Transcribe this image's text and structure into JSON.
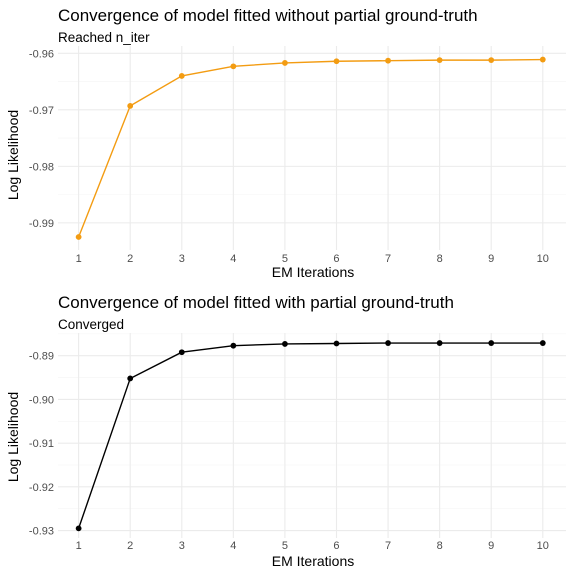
{
  "chart_data": [
    {
      "type": "line",
      "title": "Convergence of model fitted without partial ground-truth",
      "subtitle": "Reached n_iter",
      "xlabel": "EM Iterations",
      "ylabel": "Log Likelihood",
      "x": [
        1,
        2,
        3,
        4,
        5,
        6,
        7,
        8,
        9,
        10
      ],
      "series": [
        {
          "values": [
            -0.9925,
            -0.9693,
            -0.964,
            -0.9623,
            -0.9617,
            -0.9614,
            -0.9613,
            -0.9612,
            -0.9612,
            -0.9611
          ]
        }
      ],
      "xticks": [
        "1",
        "2",
        "3",
        "4",
        "5",
        "6",
        "7",
        "8",
        "9",
        "10"
      ],
      "yticks": [
        -0.99,
        -0.98,
        -0.97,
        -0.96
      ],
      "ytick_labels": [
        "-0.99",
        "-0.98",
        "-0.97",
        "-0.96"
      ],
      "xlim": [
        0.6,
        10.45
      ],
      "ylim": [
        -0.9948,
        -0.9587
      ],
      "color": "#f39c12",
      "grid": true,
      "legend": "none"
    },
    {
      "type": "line",
      "title": "Convergence of model fitted with partial ground-truth",
      "subtitle": "Converged",
      "xlabel": "EM Iterations",
      "ylabel": "Log Likelihood",
      "x": [
        1,
        2,
        3,
        4,
        5,
        6,
        7,
        8,
        9,
        10
      ],
      "series": [
        {
          "values": [
            -0.9295,
            -0.8952,
            -0.8892,
            -0.8877,
            -0.8873,
            -0.8872,
            -0.8871,
            -0.8871,
            -0.8871,
            -0.8871
          ]
        }
      ],
      "xticks": [
        "1",
        "2",
        "3",
        "4",
        "5",
        "6",
        "7",
        "8",
        "9",
        "10"
      ],
      "yticks": [
        -0.93,
        -0.92,
        -0.91,
        -0.9,
        -0.89
      ],
      "ytick_labels": [
        "-0.93",
        "-0.92",
        "-0.91",
        "-0.90",
        "-0.89"
      ],
      "xlim": [
        0.6,
        10.45
      ],
      "ylim": [
        -0.9317,
        -0.8848
      ],
      "color": "#000000",
      "grid": true,
      "legend": "none"
    }
  ]
}
